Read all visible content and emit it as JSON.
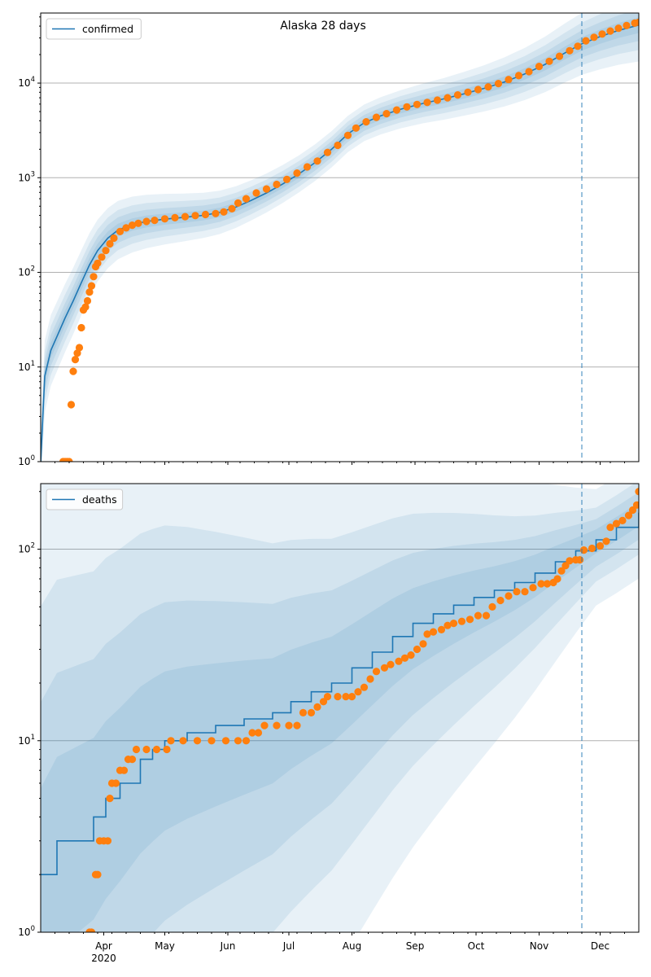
{
  "title": "Alaska 28 days",
  "colors": {
    "model": "#1f77b4",
    "observed": "#ff7f0e",
    "band": "#1f77b4",
    "grid": "#b0b0b0",
    "forecast_line": "#1f77b4"
  },
  "chart_data": [
    {
      "type": "line",
      "title": "Alaska 28 days",
      "xlabel": "",
      "ylabel": "",
      "yscale": "log",
      "ylim": [
        1,
        55000
      ],
      "xlim": [
        "2020-03-01",
        "2020-12-20"
      ],
      "x_tick_labels": [
        "Apr\n2020",
        "May",
        "Jun",
        "Jul",
        "Aug",
        "Sep",
        "Oct",
        "Nov",
        "Dec"
      ],
      "y_tick_labels": [
        "10^0",
        "10^1",
        "10^2",
        "10^3",
        "10^4"
      ],
      "grid": "y-major",
      "legend": "top-left",
      "forecast_start": "2020-11-22",
      "series": [
        {
          "name": "confirmed",
          "kind": "line",
          "points": [
            [
              "2020-03-01",
              1
            ],
            [
              "2020-03-03",
              8
            ],
            [
              "2020-03-06",
              15
            ],
            [
              "2020-03-09",
              21
            ],
            [
              "2020-03-13",
              33
            ],
            [
              "2020-03-17",
              50
            ],
            [
              "2020-03-21",
              78
            ],
            [
              "2020-03-25",
              120
            ],
            [
              "2020-03-29",
              170
            ],
            [
              "2020-04-03",
              230
            ],
            [
              "2020-04-08",
              280
            ],
            [
              "2020-04-15",
              320
            ],
            [
              "2020-04-22",
              345
            ],
            [
              "2020-05-01",
              365
            ],
            [
              "2020-05-10",
              380
            ],
            [
              "2020-05-20",
              400
            ],
            [
              "2020-05-28",
              430
            ],
            [
              "2020-06-05",
              490
            ],
            [
              "2020-06-12",
              570
            ],
            [
              "2020-06-20",
              690
            ],
            [
              "2020-06-28",
              860
            ],
            [
              "2020-07-06",
              1100
            ],
            [
              "2020-07-14",
              1450
            ],
            [
              "2020-07-22",
              2000
            ],
            [
              "2020-07-30",
              2900
            ],
            [
              "2020-08-07",
              3800
            ],
            [
              "2020-08-15",
              4500
            ],
            [
              "2020-08-25",
              5300
            ],
            [
              "2020-09-05",
              6100
            ],
            [
              "2020-09-15",
              6800
            ],
            [
              "2020-09-25",
              7700
            ],
            [
              "2020-10-05",
              8800
            ],
            [
              "2020-10-15",
              10300
            ],
            [
              "2020-10-25",
              12500
            ],
            [
              "2020-11-04",
              15800
            ],
            [
              "2020-11-14",
              21000
            ],
            [
              "2020-11-22",
              26000
            ],
            [
              "2020-12-01",
              31000
            ],
            [
              "2020-12-10",
              36000
            ],
            [
              "2020-12-20",
              41000
            ]
          ]
        },
        {
          "name": "",
          "kind": "scatter",
          "points": [
            [
              "2020-03-12",
              1
            ],
            [
              "2020-03-13",
              1
            ],
            [
              "2020-03-14",
              1
            ],
            [
              "2020-03-15",
              1
            ],
            [
              "2020-03-16",
              4
            ],
            [
              "2020-03-17",
              9
            ],
            [
              "2020-03-18",
              12
            ],
            [
              "2020-03-19",
              14
            ],
            [
              "2020-03-20",
              16
            ],
            [
              "2020-03-21",
              26
            ],
            [
              "2020-03-22",
              40
            ],
            [
              "2020-03-23",
              43
            ],
            [
              "2020-03-24",
              50
            ],
            [
              "2020-03-25",
              62
            ],
            [
              "2020-03-26",
              72
            ],
            [
              "2020-03-27",
              90
            ],
            [
              "2020-03-28",
              115
            ],
            [
              "2020-03-29",
              125
            ],
            [
              "2020-03-31",
              145
            ],
            [
              "2020-04-02",
              170
            ],
            [
              "2020-04-04",
              200
            ],
            [
              "2020-04-06",
              230
            ],
            [
              "2020-04-09",
              270
            ],
            [
              "2020-04-12",
              295
            ],
            [
              "2020-04-15",
              315
            ],
            [
              "2020-04-18",
              330
            ],
            [
              "2020-04-22",
              345
            ],
            [
              "2020-04-26",
              355
            ],
            [
              "2020-05-01",
              368
            ],
            [
              "2020-05-06",
              378
            ],
            [
              "2020-05-11",
              388
            ],
            [
              "2020-05-16",
              398
            ],
            [
              "2020-05-21",
              408
            ],
            [
              "2020-05-26",
              418
            ],
            [
              "2020-05-30",
              435
            ],
            [
              "2020-06-03",
              470
            ],
            [
              "2020-06-06",
              540
            ],
            [
              "2020-06-10",
              600
            ],
            [
              "2020-06-15",
              690
            ],
            [
              "2020-06-20",
              760
            ],
            [
              "2020-06-25",
              850
            ],
            [
              "2020-06-30",
              960
            ],
            [
              "2020-07-05",
              1120
            ],
            [
              "2020-07-10",
              1300
            ],
            [
              "2020-07-15",
              1500
            ],
            [
              "2020-07-20",
              1850
            ],
            [
              "2020-07-25",
              2200
            ],
            [
              "2020-07-30",
              2800
            ],
            [
              "2020-08-03",
              3350
            ],
            [
              "2020-08-08",
              3900
            ],
            [
              "2020-08-13",
              4350
            ],
            [
              "2020-08-18",
              4750
            ],
            [
              "2020-08-23",
              5200
            ],
            [
              "2020-08-28",
              5600
            ],
            [
              "2020-09-02",
              5950
            ],
            [
              "2020-09-07",
              6250
            ],
            [
              "2020-09-12",
              6600
            ],
            [
              "2020-09-17",
              7000
            ],
            [
              "2020-09-22",
              7500
            ],
            [
              "2020-09-27",
              8000
            ],
            [
              "2020-10-02",
              8550
            ],
            [
              "2020-10-07",
              9100
            ],
            [
              "2020-10-12",
              9900
            ],
            [
              "2020-10-17",
              10900
            ],
            [
              "2020-10-22",
              12000
            ],
            [
              "2020-10-27",
              13200
            ],
            [
              "2020-11-01",
              15000
            ],
            [
              "2020-11-06",
              17000
            ],
            [
              "2020-11-11",
              19200
            ],
            [
              "2020-11-16",
              22000
            ],
            [
              "2020-11-20",
              24500
            ],
            [
              "2020-11-24",
              28000
            ],
            [
              "2020-11-28",
              30500
            ],
            [
              "2020-12-02",
              33000
            ],
            [
              "2020-12-06",
              35500
            ],
            [
              "2020-12-10",
              38000
            ],
            [
              "2020-12-14",
              40500
            ],
            [
              "2020-12-18",
              43000
            ],
            [
              "2020-12-20",
              44000
            ]
          ]
        }
      ]
    },
    {
      "type": "line",
      "title": "",
      "xlabel": "",
      "ylabel": "",
      "yscale": "log",
      "ylim": [
        1,
        220
      ],
      "xlim": [
        "2020-03-01",
        "2020-12-20"
      ],
      "x_tick_labels": [
        "Apr\n2020",
        "May",
        "Jun",
        "Jul",
        "Aug",
        "Sep",
        "Oct",
        "Nov",
        "Dec"
      ],
      "y_tick_labels": [
        "10^0",
        "10^1",
        "10^2"
      ],
      "grid": "y-major",
      "legend": "top-left",
      "forecast_start": "2020-11-22",
      "series": [
        {
          "name": "deaths",
          "kind": "step",
          "points": [
            [
              "2020-03-01",
              2
            ],
            [
              "2020-03-09",
              3
            ],
            [
              "2020-03-27",
              4
            ],
            [
              "2020-04-02",
              5
            ],
            [
              "2020-04-09",
              6
            ],
            [
              "2020-04-19",
              8
            ],
            [
              "2020-04-25",
              9
            ],
            [
              "2020-05-01",
              10
            ],
            [
              "2020-05-12",
              11
            ],
            [
              "2020-05-26",
              12
            ],
            [
              "2020-06-09",
              13
            ],
            [
              "2020-06-23",
              14
            ],
            [
              "2020-07-02",
              16
            ],
            [
              "2020-07-12",
              18
            ],
            [
              "2020-07-22",
              20
            ],
            [
              "2020-08-01",
              24
            ],
            [
              "2020-08-11",
              29
            ],
            [
              "2020-08-21",
              35
            ],
            [
              "2020-08-31",
              41
            ],
            [
              "2020-09-10",
              46
            ],
            [
              "2020-09-20",
              51
            ],
            [
              "2020-09-30",
              56
            ],
            [
              "2020-10-10",
              61
            ],
            [
              "2020-10-20",
              67
            ],
            [
              "2020-10-30",
              75
            ],
            [
              "2020-11-09",
              86
            ],
            [
              "2020-11-19",
              98
            ],
            [
              "2020-11-29",
              112
            ],
            [
              "2020-12-09",
              130
            ],
            [
              "2020-12-20",
              155
            ]
          ]
        },
        {
          "name": "",
          "kind": "scatter",
          "points": [
            [
              "2020-03-25",
              1
            ],
            [
              "2020-03-26",
              1
            ],
            [
              "2020-03-28",
              2
            ],
            [
              "2020-03-29",
              2
            ],
            [
              "2020-03-30",
              3
            ],
            [
              "2020-04-01",
              3
            ],
            [
              "2020-04-03",
              3
            ],
            [
              "2020-04-04",
              5
            ],
            [
              "2020-04-05",
              6
            ],
            [
              "2020-04-07",
              6
            ],
            [
              "2020-04-09",
              7
            ],
            [
              "2020-04-11",
              7
            ],
            [
              "2020-04-13",
              8
            ],
            [
              "2020-04-15",
              8
            ],
            [
              "2020-04-17",
              9
            ],
            [
              "2020-04-22",
              9
            ],
            [
              "2020-04-27",
              9
            ],
            [
              "2020-05-02",
              9
            ],
            [
              "2020-05-04",
              10
            ],
            [
              "2020-05-10",
              10
            ],
            [
              "2020-05-17",
              10
            ],
            [
              "2020-05-24",
              10
            ],
            [
              "2020-05-31",
              10
            ],
            [
              "2020-06-06",
              10
            ],
            [
              "2020-06-10",
              10
            ],
            [
              "2020-06-13",
              11
            ],
            [
              "2020-06-16",
              11
            ],
            [
              "2020-06-19",
              12
            ],
            [
              "2020-06-25",
              12
            ],
            [
              "2020-07-01",
              12
            ],
            [
              "2020-07-05",
              12
            ],
            [
              "2020-07-08",
              14
            ],
            [
              "2020-07-12",
              14
            ],
            [
              "2020-07-15",
              15
            ],
            [
              "2020-07-18",
              16
            ],
            [
              "2020-07-20",
              17
            ],
            [
              "2020-07-25",
              17
            ],
            [
              "2020-07-29",
              17
            ],
            [
              "2020-08-01",
              17
            ],
            [
              "2020-08-04",
              18
            ],
            [
              "2020-08-07",
              19
            ],
            [
              "2020-08-10",
              21
            ],
            [
              "2020-08-13",
              23
            ],
            [
              "2020-08-17",
              24
            ],
            [
              "2020-08-20",
              25
            ],
            [
              "2020-08-24",
              26
            ],
            [
              "2020-08-27",
              27
            ],
            [
              "2020-08-30",
              28
            ],
            [
              "2020-09-02",
              30
            ],
            [
              "2020-09-05",
              32
            ],
            [
              "2020-09-07",
              36
            ],
            [
              "2020-09-10",
              37
            ],
            [
              "2020-09-14",
              38
            ],
            [
              "2020-09-17",
              40
            ],
            [
              "2020-09-20",
              41
            ],
            [
              "2020-09-24",
              42
            ],
            [
              "2020-09-28",
              43
            ],
            [
              "2020-10-02",
              45
            ],
            [
              "2020-10-06",
              45
            ],
            [
              "2020-10-09",
              50
            ],
            [
              "2020-10-13",
              54
            ],
            [
              "2020-10-17",
              57
            ],
            [
              "2020-10-21",
              60
            ],
            [
              "2020-10-25",
              60
            ],
            [
              "2020-10-29",
              63
            ],
            [
              "2020-11-02",
              66
            ],
            [
              "2020-11-05",
              66
            ],
            [
              "2020-11-08",
              67
            ],
            [
              "2020-11-10",
              70
            ],
            [
              "2020-11-12",
              77
            ],
            [
              "2020-11-14",
              82
            ],
            [
              "2020-11-16",
              87
            ],
            [
              "2020-11-19",
              88
            ],
            [
              "2020-11-21",
              88
            ],
            [
              "2020-11-23",
              99
            ],
            [
              "2020-11-27",
              101
            ],
            [
              "2020-12-01",
              104
            ],
            [
              "2020-12-04",
              110
            ],
            [
              "2020-12-06",
              130
            ],
            [
              "2020-12-09",
              136
            ],
            [
              "2020-12-12",
              141
            ],
            [
              "2020-12-15",
              150
            ],
            [
              "2020-12-17",
              160
            ],
            [
              "2020-12-19",
              170
            ],
            [
              "2020-12-20",
              200
            ]
          ]
        }
      ]
    }
  ]
}
